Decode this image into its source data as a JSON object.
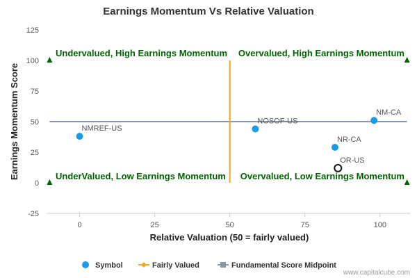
{
  "chart_data": {
    "type": "scatter",
    "title": "Earnings Momentum Vs Relative Valuation",
    "xlabel": "Relative Valuation (50 = fairly valued)",
    "ylabel": "Earnings Momentum Score",
    "xlim": [
      -11,
      110
    ],
    "ylim": [
      -25,
      125
    ],
    "x_ticks": [
      0,
      25,
      50,
      75,
      100
    ],
    "y_ticks": [
      -25,
      0,
      25,
      50,
      75,
      100,
      125
    ],
    "grid": false,
    "legend_position": "bottom",
    "points": [
      {
        "label": "NMREF-US",
        "x": 0,
        "y": 38,
        "style": "symbol"
      },
      {
        "label": "NOSOF-US",
        "x": 58.5,
        "y": 44,
        "style": "symbol"
      },
      {
        "label": "NM-CA",
        "x": 98,
        "y": 51,
        "style": "symbol"
      },
      {
        "label": "NR-CA",
        "x": 85,
        "y": 29,
        "style": "symbol"
      },
      {
        "label": "OR-US",
        "x": 86,
        "y": 12,
        "style": "highlight"
      }
    ],
    "fairly_valued_line": {
      "x": 50,
      "y_from": 0,
      "y_to": 100
    },
    "midpoint_line": {
      "y": 50,
      "x_from": -10,
      "x_to": 109
    },
    "quadrant_labels": [
      {
        "text": "Undervalued, High Earnings Momentum",
        "position": "top-left"
      },
      {
        "text": "Overvalued, High Earnings Momentum",
        "position": "top-right"
      },
      {
        "text": "UnderValued, Low Earnings Momentum",
        "position": "bottom-left"
      },
      {
        "text": "Overvalued, Low Earnings Momentum",
        "position": "bottom-right"
      }
    ],
    "corner_markers": [
      {
        "x": -10,
        "y": 100
      },
      {
        "x": 109,
        "y": 100
      },
      {
        "x": -10,
        "y": 0
      },
      {
        "x": 109,
        "y": 0
      }
    ],
    "legend": [
      {
        "label": "Symbol",
        "kind": "dot",
        "color": "#1a9be8"
      },
      {
        "label": "Fairly Valued",
        "kind": "line-diamond",
        "color": "#f5a623"
      },
      {
        "label": "Fundamental Score Midpoint",
        "kind": "line-square",
        "color": "#8a95a5"
      }
    ],
    "colors": {
      "symbol": "#1a9be8",
      "highlight_stroke": "#111111",
      "fairly_valued": "#f5a623",
      "midpoint": "#8a95a5",
      "quadrant_text": "#006400",
      "marker": "#006400"
    }
  },
  "credit": "www.capitalcube.com"
}
